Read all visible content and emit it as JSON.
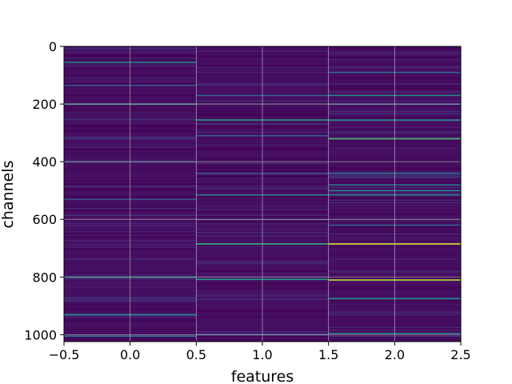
{
  "chart_data": {
    "type": "heatmap",
    "title": "",
    "xlabel": "features",
    "ylabel": "channels",
    "colormap": "viridis",
    "grid": true,
    "x_columns": [
      0,
      1,
      2
    ],
    "xlim": [
      -0.5,
      2.5
    ],
    "ylim": [
      1024,
      0
    ],
    "y_axis_inverted": true,
    "rows": 1024,
    "xticks": [
      -0.5,
      0.0,
      0.5,
      1.0,
      1.5,
      2.0,
      2.5
    ],
    "xtick_labels": [
      "−0.5",
      "0.0",
      "0.5",
      "1.0",
      "1.5",
      "2.0",
      "2.5"
    ],
    "yticks": [
      0,
      200,
      400,
      600,
      800,
      1000
    ],
    "ytick_labels": [
      "0",
      "200",
      "400",
      "600",
      "800",
      "1000"
    ],
    "background_level": 0.05,
    "noise_level_range": [
      0.0,
      0.18
    ],
    "highlighted_cells": [
      {
        "feature": 0,
        "channel": 55,
        "level": 0.45
      },
      {
        "feature": 0,
        "channel": 135,
        "level": 0.3
      },
      {
        "feature": 0,
        "channel": 200,
        "level": 0.5
      },
      {
        "feature": 0,
        "channel": 400,
        "level": 0.25
      },
      {
        "feature": 0,
        "channel": 530,
        "level": 0.25
      },
      {
        "feature": 0,
        "channel": 800,
        "level": 0.5
      },
      {
        "feature": 0,
        "channel": 930,
        "level": 0.45
      },
      {
        "feature": 0,
        "channel": 1005,
        "level": 0.4
      },
      {
        "feature": 1,
        "channel": 170,
        "level": 0.3
      },
      {
        "feature": 1,
        "channel": 255,
        "level": 0.55
      },
      {
        "feature": 1,
        "channel": 310,
        "level": 0.3
      },
      {
        "feature": 1,
        "channel": 440,
        "level": 0.25
      },
      {
        "feature": 1,
        "channel": 515,
        "level": 0.45
      },
      {
        "feature": 1,
        "channel": 685,
        "level": 0.65
      },
      {
        "feature": 1,
        "channel": 808,
        "level": 0.55
      },
      {
        "feature": 1,
        "channel": 1000,
        "level": 0.3
      },
      {
        "feature": 2,
        "channel": 90,
        "level": 0.35
      },
      {
        "feature": 2,
        "channel": 170,
        "level": 0.45
      },
      {
        "feature": 2,
        "channel": 200,
        "level": 0.35
      },
      {
        "feature": 2,
        "channel": 255,
        "level": 0.5
      },
      {
        "feature": 2,
        "channel": 320,
        "level": 0.7
      },
      {
        "feature": 2,
        "channel": 440,
        "level": 0.4
      },
      {
        "feature": 2,
        "channel": 480,
        "level": 0.4
      },
      {
        "feature": 2,
        "channel": 500,
        "level": 0.45
      },
      {
        "feature": 2,
        "channel": 515,
        "level": 0.45
      },
      {
        "feature": 2,
        "channel": 620,
        "level": 0.3
      },
      {
        "feature": 2,
        "channel": 685,
        "level": 0.95
      },
      {
        "feature": 2,
        "channel": 810,
        "level": 0.9
      },
      {
        "feature": 2,
        "channel": 875,
        "level": 0.5
      },
      {
        "feature": 2,
        "channel": 995,
        "level": 0.45
      }
    ]
  }
}
